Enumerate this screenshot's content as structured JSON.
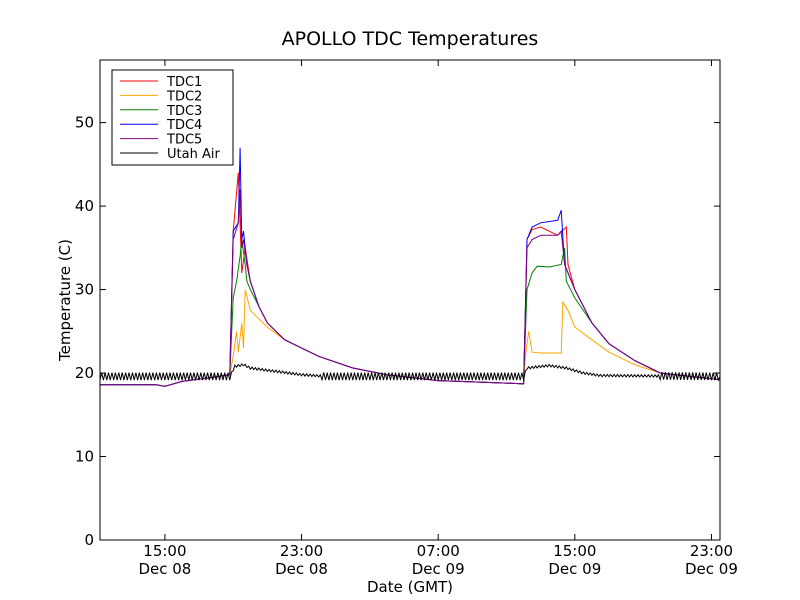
{
  "chart_data": {
    "type": "line",
    "title": "APOLLO TDC Temperatures",
    "xlabel": "Date (GMT)",
    "ylabel": "Temperature (C)",
    "xlim": [
      11.2,
      47.5
    ],
    "ylim": [
      0,
      57.5
    ],
    "x_unit": "hours since 00:00 Dec 08 (GMT)",
    "y_ticks": [
      0,
      10,
      20,
      30,
      40,
      50
    ],
    "x_ticks": [
      {
        "x": 15,
        "time": "15:00",
        "date": "Dec 08"
      },
      {
        "x": 23,
        "time": "23:00",
        "date": "Dec 08"
      },
      {
        "x": 31,
        "time": "07:00",
        "date": "Dec 09"
      },
      {
        "x": 39,
        "time": "15:00",
        "date": "Dec 09"
      },
      {
        "x": 47,
        "time": "23:00",
        "date": "Dec 09"
      }
    ],
    "legend": {
      "location": "upper-left",
      "entries": [
        "TDC1",
        "TDC2",
        "TDC3",
        "TDC4",
        "TDC5",
        "Utah Air"
      ]
    },
    "series": [
      {
        "name": "TDC1",
        "color": "#ff0000",
        "points": [
          [
            11.2,
            18.6
          ],
          [
            14.5,
            18.6
          ],
          [
            15.0,
            18.4
          ],
          [
            16.0,
            19.0
          ],
          [
            17.5,
            19.4
          ],
          [
            18.8,
            19.8
          ],
          [
            19.0,
            37.0
          ],
          [
            19.3,
            44.0
          ],
          [
            19.5,
            32.0
          ],
          [
            19.7,
            35.0
          ],
          [
            20.0,
            31.0
          ],
          [
            20.5,
            28.0
          ],
          [
            21.0,
            26.0
          ],
          [
            22.0,
            24.0
          ],
          [
            24.0,
            22.0
          ],
          [
            26.0,
            20.6
          ],
          [
            28.0,
            19.8
          ],
          [
            31.0,
            19.1
          ],
          [
            35.0,
            18.8
          ],
          [
            36.0,
            18.7
          ],
          [
            36.2,
            36.0
          ],
          [
            36.5,
            37.2
          ],
          [
            37.0,
            37.5
          ],
          [
            38.0,
            36.5
          ],
          [
            38.5,
            37.5
          ],
          [
            38.6,
            33.0
          ],
          [
            39.0,
            30.0
          ],
          [
            40.0,
            26.0
          ],
          [
            41.0,
            23.5
          ],
          [
            42.5,
            21.5
          ],
          [
            44.0,
            20.0
          ],
          [
            47.5,
            19.2
          ]
        ]
      },
      {
        "name": "TDC2",
        "color": "#ffa500",
        "points": [
          [
            11.2,
            18.6
          ],
          [
            14.5,
            18.6
          ],
          [
            15.0,
            18.4
          ],
          [
            16.0,
            19.0
          ],
          [
            17.5,
            19.4
          ],
          [
            18.8,
            19.8
          ],
          [
            19.0,
            22.0
          ],
          [
            19.2,
            25.0
          ],
          [
            19.3,
            22.5
          ],
          [
            19.5,
            26.0
          ],
          [
            19.6,
            23.0
          ],
          [
            19.7,
            30.0
          ],
          [
            20.0,
            27.5
          ],
          [
            20.5,
            26.5
          ],
          [
            21.0,
            25.5
          ],
          [
            22.0,
            24.0
          ],
          [
            24.0,
            22.0
          ],
          [
            26.0,
            20.6
          ],
          [
            28.0,
            19.8
          ],
          [
            31.0,
            19.1
          ],
          [
            35.0,
            18.8
          ],
          [
            36.0,
            18.7
          ],
          [
            36.1,
            22.0
          ],
          [
            36.3,
            25.0
          ],
          [
            36.5,
            22.5
          ],
          [
            37.0,
            22.4
          ],
          [
            38.2,
            22.4
          ],
          [
            38.3,
            28.5
          ],
          [
            38.6,
            27.5
          ],
          [
            39.0,
            25.5
          ],
          [
            40.0,
            24.0
          ],
          [
            41.0,
            22.5
          ],
          [
            42.5,
            21.0
          ],
          [
            44.0,
            20.0
          ],
          [
            47.5,
            19.2
          ]
        ]
      },
      {
        "name": "TDC3",
        "color": "#008000",
        "points": [
          [
            11.2,
            18.6
          ],
          [
            14.5,
            18.6
          ],
          [
            15.0,
            18.4
          ],
          [
            16.0,
            19.0
          ],
          [
            17.5,
            19.4
          ],
          [
            18.8,
            19.8
          ],
          [
            19.0,
            29.0
          ],
          [
            19.2,
            31.0
          ],
          [
            19.4,
            34.0
          ],
          [
            19.5,
            36.0
          ],
          [
            19.7,
            33.0
          ],
          [
            19.8,
            31.0
          ],
          [
            20.0,
            30.0
          ],
          [
            20.5,
            28.0
          ],
          [
            21.0,
            26.0
          ],
          [
            22.0,
            24.0
          ],
          [
            24.0,
            22.0
          ],
          [
            26.0,
            20.6
          ],
          [
            28.0,
            19.8
          ],
          [
            31.0,
            19.1
          ],
          [
            35.0,
            18.8
          ],
          [
            36.0,
            18.7
          ],
          [
            36.2,
            30.0
          ],
          [
            36.5,
            32.0
          ],
          [
            36.8,
            32.8
          ],
          [
            37.5,
            32.7
          ],
          [
            38.2,
            33.0
          ],
          [
            38.4,
            35.0
          ],
          [
            38.5,
            31.0
          ],
          [
            39.0,
            29.0
          ],
          [
            40.0,
            26.0
          ],
          [
            41.0,
            23.5
          ],
          [
            42.5,
            21.5
          ],
          [
            44.0,
            20.0
          ],
          [
            47.5,
            19.2
          ]
        ]
      },
      {
        "name": "TDC4",
        "color": "#0000ff",
        "points": [
          [
            11.2,
            18.6
          ],
          [
            14.5,
            18.6
          ],
          [
            15.0,
            18.4
          ],
          [
            16.0,
            19.0
          ],
          [
            17.5,
            19.4
          ],
          [
            18.8,
            19.8
          ],
          [
            19.0,
            37.0
          ],
          [
            19.3,
            38.0
          ],
          [
            19.4,
            47.0
          ],
          [
            19.5,
            36.0
          ],
          [
            19.6,
            37.0
          ],
          [
            19.8,
            33.0
          ],
          [
            20.0,
            31.0
          ],
          [
            20.5,
            28.0
          ],
          [
            21.0,
            26.0
          ],
          [
            22.0,
            24.0
          ],
          [
            24.0,
            22.0
          ],
          [
            26.0,
            20.6
          ],
          [
            28.0,
            19.8
          ],
          [
            31.0,
            19.1
          ],
          [
            35.0,
            18.8
          ],
          [
            36.0,
            18.7
          ],
          [
            36.2,
            36.0
          ],
          [
            36.5,
            37.5
          ],
          [
            37.0,
            38.0
          ],
          [
            38.0,
            38.3
          ],
          [
            38.2,
            39.5
          ],
          [
            38.4,
            33.0
          ],
          [
            39.0,
            30.0
          ],
          [
            40.0,
            26.0
          ],
          [
            41.0,
            23.5
          ],
          [
            42.5,
            21.5
          ],
          [
            44.0,
            20.0
          ],
          [
            47.5,
            19.2
          ]
        ]
      },
      {
        "name": "TDC5",
        "color": "#800080",
        "points": [
          [
            11.2,
            18.6
          ],
          [
            14.5,
            18.6
          ],
          [
            15.0,
            18.4
          ],
          [
            16.0,
            19.0
          ],
          [
            17.5,
            19.4
          ],
          [
            18.8,
            19.8
          ],
          [
            19.0,
            36.0
          ],
          [
            19.3,
            38.0
          ],
          [
            19.4,
            42.0
          ],
          [
            19.5,
            35.0
          ],
          [
            19.6,
            36.0
          ],
          [
            19.8,
            33.0
          ],
          [
            20.0,
            31.0
          ],
          [
            20.5,
            28.0
          ],
          [
            21.0,
            26.0
          ],
          [
            22.0,
            24.0
          ],
          [
            24.0,
            22.0
          ],
          [
            26.0,
            20.6
          ],
          [
            28.0,
            19.8
          ],
          [
            31.0,
            19.1
          ],
          [
            35.0,
            18.8
          ],
          [
            36.0,
            18.7
          ],
          [
            36.2,
            35.0
          ],
          [
            36.5,
            36.0
          ],
          [
            37.0,
            36.5
          ],
          [
            38.0,
            36.5
          ],
          [
            38.2,
            37.0
          ],
          [
            38.4,
            33.0
          ],
          [
            39.0,
            30.0
          ],
          [
            40.0,
            26.0
          ],
          [
            41.0,
            23.5
          ],
          [
            42.5,
            21.5
          ],
          [
            44.0,
            20.0
          ],
          [
            47.5,
            19.2
          ]
        ]
      },
      {
        "name": "Utah Air",
        "color": "#000000",
        "oscillation": 0.45,
        "points": [
          [
            11.2,
            19.6
          ],
          [
            18.8,
            19.6
          ],
          [
            19.1,
            20.8
          ],
          [
            19.6,
            21.0
          ],
          [
            20.0,
            20.6
          ],
          [
            21.5,
            20.2
          ],
          [
            23.0,
            19.8
          ],
          [
            24.5,
            19.6
          ],
          [
            36.0,
            19.6
          ],
          [
            36.2,
            20.6
          ],
          [
            37.5,
            20.9
          ],
          [
            38.5,
            20.6
          ],
          [
            39.5,
            20.0
          ],
          [
            40.5,
            19.7
          ],
          [
            47.5,
            19.6
          ]
        ]
      }
    ]
  }
}
